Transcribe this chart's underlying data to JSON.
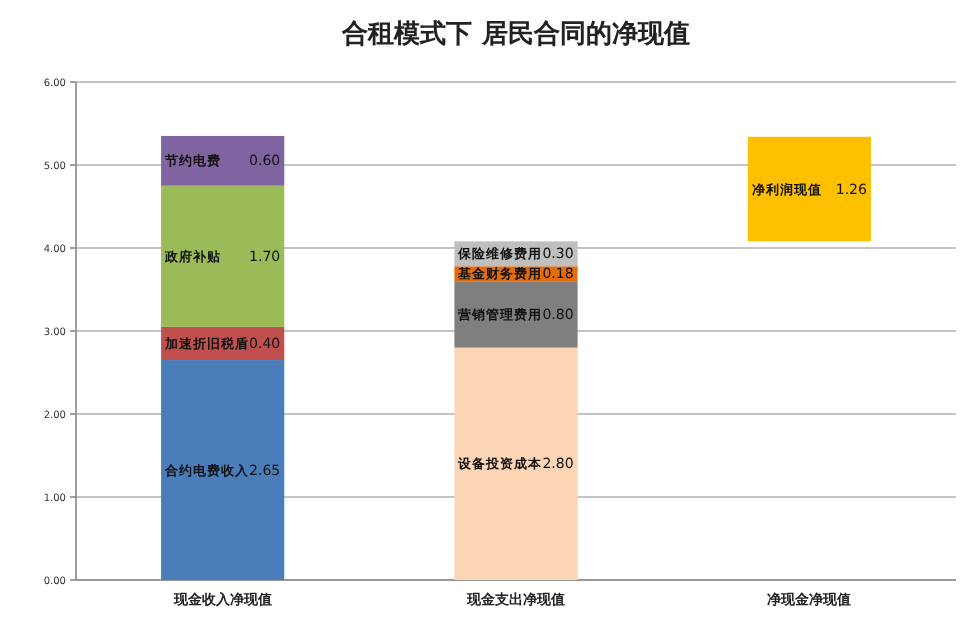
{
  "chart_data": {
    "type": "bar",
    "title": "合租模式下  居民合同的净现值",
    "categories": [
      "现金收入净现值",
      "现金支出净现值",
      "净现金净现值"
    ],
    "stacked": true,
    "series": [
      {
        "name": "合约电费收入",
        "color": "#4a7ebb",
        "values": [
          2.65,
          null,
          null
        ],
        "value_labels": [
          "2.65",
          null,
          null
        ]
      },
      {
        "name": "加速折旧税盾",
        "color": "#c0504d",
        "values": [
          0.4,
          null,
          null
        ],
        "value_labels": [
          "0.40",
          null,
          null
        ]
      },
      {
        "name": "政府补贴",
        "color": "#9bbb59",
        "values": [
          1.7,
          null,
          null
        ],
        "value_labels": [
          "1.70",
          null,
          null
        ]
      },
      {
        "name": "节约电费",
        "color": "#8064a2",
        "values": [
          0.6,
          null,
          null
        ],
        "value_labels": [
          "0.60",
          null,
          null
        ]
      },
      {
        "name": "设备投资成本",
        "color": "#fcd5b5",
        "values": [
          null,
          2.8,
          null
        ],
        "value_labels": [
          null,
          "2.80",
          null
        ]
      },
      {
        "name": "营销管理费用",
        "color": "#7f7f7f",
        "values": [
          null,
          0.8,
          null
        ],
        "value_labels": [
          null,
          "0.80",
          null
        ]
      },
      {
        "name": "基金财务费用",
        "color": "#e46c0a",
        "values": [
          null,
          0.18,
          null
        ],
        "value_labels": [
          null,
          "0.18",
          null
        ]
      },
      {
        "name": "保险维修费用",
        "color": "#bfbfbf",
        "values": [
          null,
          0.3,
          null
        ],
        "value_labels": [
          null,
          "0.30",
          null
        ]
      },
      {
        "name": "净利润现值",
        "color": "#ffc000",
        "values": [
          null,
          null,
          1.26
        ],
        "base": [
          null,
          null,
          4.08
        ],
        "value_labels": [
          null,
          null,
          "1.26"
        ]
      }
    ],
    "ylim": [
      0,
      6
    ],
    "yticks": [
      {
        "value": 0,
        "label": "0.00"
      },
      {
        "value": 1,
        "label": "1.00"
      },
      {
        "value": 2,
        "label": "2.00"
      },
      {
        "value": 3,
        "label": "3.00"
      },
      {
        "value": 4,
        "label": "4.00"
      },
      {
        "value": 5,
        "label": "5.00"
      },
      {
        "value": 6,
        "label": "6.00"
      }
    ],
    "grid": "y",
    "legend": false
  }
}
